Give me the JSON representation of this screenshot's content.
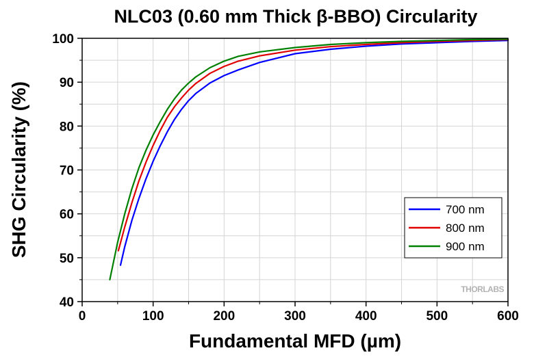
{
  "chart_data": {
    "type": "line",
    "title": "NLC03 (0.60 mm Thick β-BBO) Circularity",
    "xlabel": "Fundamental MFD (µm)",
    "ylabel": "SHG Circularity (%)",
    "xlim": [
      0,
      600
    ],
    "ylim": [
      40,
      100
    ],
    "xticks": [
      "0",
      "100",
      "200",
      "300",
      "400",
      "500",
      "600"
    ],
    "yticks": [
      "40",
      "50",
      "60",
      "70",
      "80",
      "90",
      "100"
    ],
    "grid": true,
    "legend": "bottom-right",
    "watermark": "THORLABS",
    "series": [
      {
        "name": "700 nm",
        "color": "#0000ff",
        "x": [
          54,
          60,
          70,
          80,
          90,
          100,
          110,
          120,
          130,
          140,
          150,
          160,
          180,
          200,
          220,
          250,
          300,
          350,
          400,
          450,
          500,
          550,
          600
        ],
        "y": [
          48.3,
          52.5,
          58.5,
          63.5,
          68.0,
          72.0,
          75.5,
          78.7,
          81.5,
          83.8,
          85.8,
          87.4,
          89.8,
          91.5,
          92.8,
          94.5,
          96.5,
          97.5,
          98.2,
          98.7,
          99.0,
          99.3,
          99.5
        ]
      },
      {
        "name": "800 nm",
        "color": "#e00000",
        "x": [
          51,
          60,
          70,
          80,
          90,
          100,
          110,
          120,
          130,
          140,
          150,
          160,
          180,
          200,
          220,
          250,
          300,
          350,
          400,
          450,
          500,
          550,
          600
        ],
        "y": [
          51.6,
          57.0,
          62.5,
          67.5,
          71.8,
          75.6,
          79.0,
          82.0,
          84.4,
          86.4,
          88.2,
          89.7,
          92.0,
          93.6,
          94.8,
          96.0,
          97.3,
          98.1,
          98.6,
          99.0,
          99.3,
          99.5,
          99.7
        ]
      },
      {
        "name": "900 nm",
        "color": "#008000",
        "x": [
          39,
          50,
          60,
          70,
          80,
          90,
          100,
          110,
          120,
          130,
          140,
          150,
          160,
          180,
          200,
          220,
          250,
          300,
          350,
          400,
          450,
          500,
          550,
          600
        ],
        "y": [
          45.0,
          53.5,
          60.0,
          65.7,
          70.5,
          74.5,
          78.0,
          81.0,
          83.8,
          86.2,
          88.2,
          89.8,
          91.2,
          93.3,
          94.8,
          95.9,
          96.9,
          97.9,
          98.6,
          99.0,
          99.3,
          99.5,
          99.7,
          99.8
        ]
      }
    ]
  }
}
